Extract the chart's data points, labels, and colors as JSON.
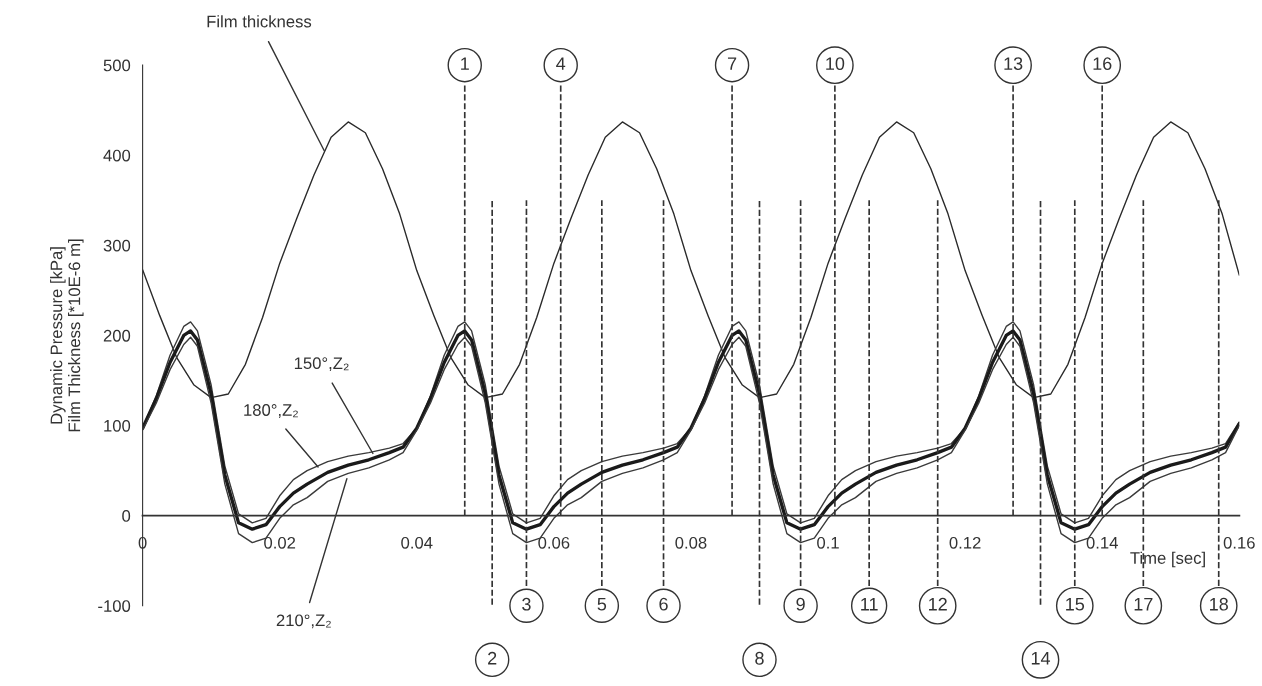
{
  "chart_data": {
    "type": "line",
    "xlabel": "Time [sec]",
    "ylabel": "Dynamic Pressure [kPa]\nFilm Thickness [*10E-6 m]",
    "xlim": [
      0,
      0.16
    ],
    "xticks": [
      0,
      0.02,
      0.04,
      0.06,
      0.08,
      0.1,
      0.12,
      0.14,
      0.16
    ],
    "ylim": [
      -100,
      500
    ],
    "yticks": [
      -100,
      0,
      100,
      200,
      300,
      400,
      500
    ],
    "grid": false,
    "marker": "none",
    "line_style": "solid",
    "x": [
      0,
      0.002,
      0.004,
      0.006,
      0.007,
      0.008,
      0.01,
      0.012,
      0.014,
      0.016,
      0.018,
      0.02,
      0.022,
      0.024,
      0.027,
      0.03,
      0.033,
      0.036,
      0.038,
      0.04,
      0.042,
      0.044,
      0.046,
      0.047,
      0.048,
      0.05,
      0.052,
      0.054,
      0.056,
      0.058,
      0.06,
      0.062,
      0.064,
      0.067,
      0.07,
      0.073,
      0.076,
      0.078,
      0.08,
      0.082,
      0.084,
      0.086,
      0.087,
      0.088,
      0.09,
      0.092,
      0.094,
      0.096,
      0.098,
      0.1,
      0.102,
      0.104,
      0.107,
      0.11,
      0.113,
      0.116,
      0.118,
      0.12,
      0.122,
      0.124,
      0.126,
      0.127,
      0.128,
      0.13,
      0.132,
      0.134,
      0.136,
      0.138,
      0.14,
      0.142,
      0.144,
      0.147,
      0.15,
      0.153,
      0.156,
      0.158,
      0.16
    ],
    "series": [
      {
        "color": "#2a2a2a",
        "x": [
          0,
          0.0025,
          0.005,
          0.0075,
          0.01,
          0.0125,
          0.015,
          0.0175,
          0.02,
          0.0225,
          0.025,
          0.0275,
          0.03,
          0.0325,
          0.035,
          0.0375,
          0.04,
          0.0425,
          0.045,
          0.0475,
          0.05,
          0.0525,
          0.055,
          0.0575,
          0.06,
          0.0625,
          0.065,
          0.0675,
          0.07,
          0.0725,
          0.075,
          0.0775,
          0.08,
          0.0825,
          0.085,
          0.0875,
          0.09,
          0.0925,
          0.095,
          0.0975,
          0.1,
          0.1025,
          0.105,
          0.1075,
          0.11,
          0.1125,
          0.115,
          0.1175,
          0.12,
          0.1225,
          0.125,
          0.1275,
          0.13,
          0.1325,
          0.135,
          0.1375,
          0.14,
          0.1425,
          0.145,
          0.1475,
          0.15,
          0.1525,
          0.155,
          0.1575,
          0.16
        ],
        "values": [
          273,
          222,
          175,
          145,
          131,
          135,
          168,
          220,
          280,
          330,
          378,
          420,
          437,
          425,
          385,
          335,
          272,
          222,
          175,
          145,
          131,
          135,
          168,
          220,
          280,
          330,
          378,
          420,
          437,
          425,
          385,
          335,
          272,
          222,
          175,
          145,
          131,
          135,
          168,
          220,
          280,
          330,
          378,
          420,
          437,
          425,
          385,
          335,
          272,
          222,
          175,
          145,
          131,
          135,
          168,
          220,
          280,
          330,
          378,
          420,
          437,
          425,
          385,
          335,
          267
        ]
      },
      {
        "color": "#3a3a3a",
        "values": [
          97,
          133,
          178,
          210,
          215,
          205,
          145,
          55,
          2,
          -8,
          -3,
          22,
          40,
          50,
          60,
          66,
          70,
          75,
          80,
          97,
          133,
          178,
          210,
          215,
          205,
          145,
          55,
          2,
          -8,
          -3,
          22,
          40,
          50,
          60,
          66,
          70,
          75,
          80,
          97,
          133,
          178,
          210,
          215,
          205,
          145,
          55,
          2,
          -8,
          -3,
          22,
          40,
          50,
          60,
          66,
          70,
          75,
          80,
          97,
          133,
          178,
          210,
          215,
          205,
          145,
          55,
          2,
          -8,
          -3,
          22,
          40,
          50,
          60,
          66,
          70,
          75,
          80,
          104
        ]
      },
      {
        "color": "#1a1a1a",
        "values": [
          97,
          130,
          170,
          200,
          205,
          195,
          135,
          45,
          -8,
          -15,
          -10,
          10,
          25,
          35,
          48,
          56,
          62,
          70,
          76,
          97,
          130,
          170,
          200,
          205,
          195,
          135,
          45,
          -8,
          -15,
          -10,
          10,
          25,
          35,
          48,
          56,
          62,
          70,
          76,
          97,
          130,
          170,
          200,
          205,
          195,
          135,
          45,
          -8,
          -15,
          -10,
          10,
          25,
          35,
          48,
          56,
          62,
          70,
          76,
          97,
          130,
          170,
          200,
          205,
          195,
          135,
          45,
          -8,
          -15,
          -10,
          10,
          25,
          35,
          48,
          56,
          62,
          70,
          76,
          102
        ]
      },
      {
        "color": "#3a3a3a",
        "values": [
          95,
          125,
          162,
          190,
          198,
          188,
          125,
          35,
          -20,
          -30,
          -25,
          -3,
          12,
          20,
          38,
          47,
          53,
          62,
          70,
          95,
          125,
          162,
          190,
          198,
          188,
          125,
          35,
          -20,
          -30,
          -25,
          -3,
          12,
          20,
          38,
          47,
          53,
          62,
          70,
          95,
          125,
          162,
          190,
          198,
          188,
          125,
          35,
          -20,
          -30,
          -25,
          -3,
          12,
          20,
          38,
          47,
          53,
          62,
          70,
          95,
          125,
          162,
          190,
          198,
          188,
          125,
          35,
          -20,
          -30,
          -25,
          -3,
          12,
          20,
          38,
          47,
          53,
          62,
          70,
          100
        ]
      }
    ],
    "annotations": [
      {
        "text": "Film thickness",
        "x": 0.0265,
        "y": 405
      },
      {
        "text": "150°,Z₂",
        "x": 0.0336,
        "y": 69
      },
      {
        "text": "180°,Z₂",
        "x": 0.0256,
        "y": 54
      },
      {
        "text": "210°,Z₂",
        "x": 0.0298,
        "y": 41
      },
      "1",
      "2",
      "3",
      "4",
      "5",
      "6",
      "7",
      "8",
      "9",
      "10",
      "11",
      "12",
      "13",
      "14",
      "15",
      "16",
      "17",
      "18"
    ],
    "ref_lines": [
      {
        "axis": "x",
        "value": 0.047,
        "color": "#333333",
        "line_style": "dashed"
      },
      {
        "axis": "x",
        "value": 0.051,
        "color": "#333333",
        "line_style": "dashed"
      },
      {
        "axis": "x",
        "value": 0.056,
        "color": "#333333",
        "line_style": "dashed"
      },
      {
        "axis": "x",
        "value": 0.061,
        "color": "#333333",
        "line_style": "dashed"
      },
      {
        "axis": "x",
        "value": 0.067,
        "color": "#333333",
        "line_style": "dashed"
      },
      {
        "axis": "x",
        "value": 0.076,
        "color": "#333333",
        "line_style": "dashed"
      },
      {
        "axis": "x",
        "value": 0.086,
        "color": "#333333",
        "line_style": "dashed"
      },
      {
        "axis": "x",
        "value": 0.09,
        "color": "#333333",
        "line_style": "dashed"
      },
      {
        "axis": "x",
        "value": 0.096,
        "color": "#333333",
        "line_style": "dashed"
      },
      {
        "axis": "x",
        "value": 0.101,
        "color": "#333333",
        "line_style": "dashed"
      },
      {
        "axis": "x",
        "value": 0.106,
        "color": "#333333",
        "line_style": "dashed"
      },
      {
        "axis": "x",
        "value": 0.116,
        "color": "#333333",
        "line_style": "dashed"
      },
      {
        "axis": "x",
        "value": 0.127,
        "color": "#333333",
        "line_style": "dashed"
      },
      {
        "axis": "x",
        "value": 0.131,
        "color": "#333333",
        "line_style": "dashed"
      },
      {
        "axis": "x",
        "value": 0.136,
        "color": "#333333",
        "line_style": "dashed"
      },
      {
        "axis": "x",
        "value": 0.14,
        "color": "#333333",
        "line_style": "dashed"
      },
      {
        "axis": "x",
        "value": 0.146,
        "color": "#333333",
        "line_style": "dashed"
      },
      {
        "axis": "x",
        "value": 0.157,
        "color": "#333333",
        "line_style": "dashed"
      }
    ]
  }
}
